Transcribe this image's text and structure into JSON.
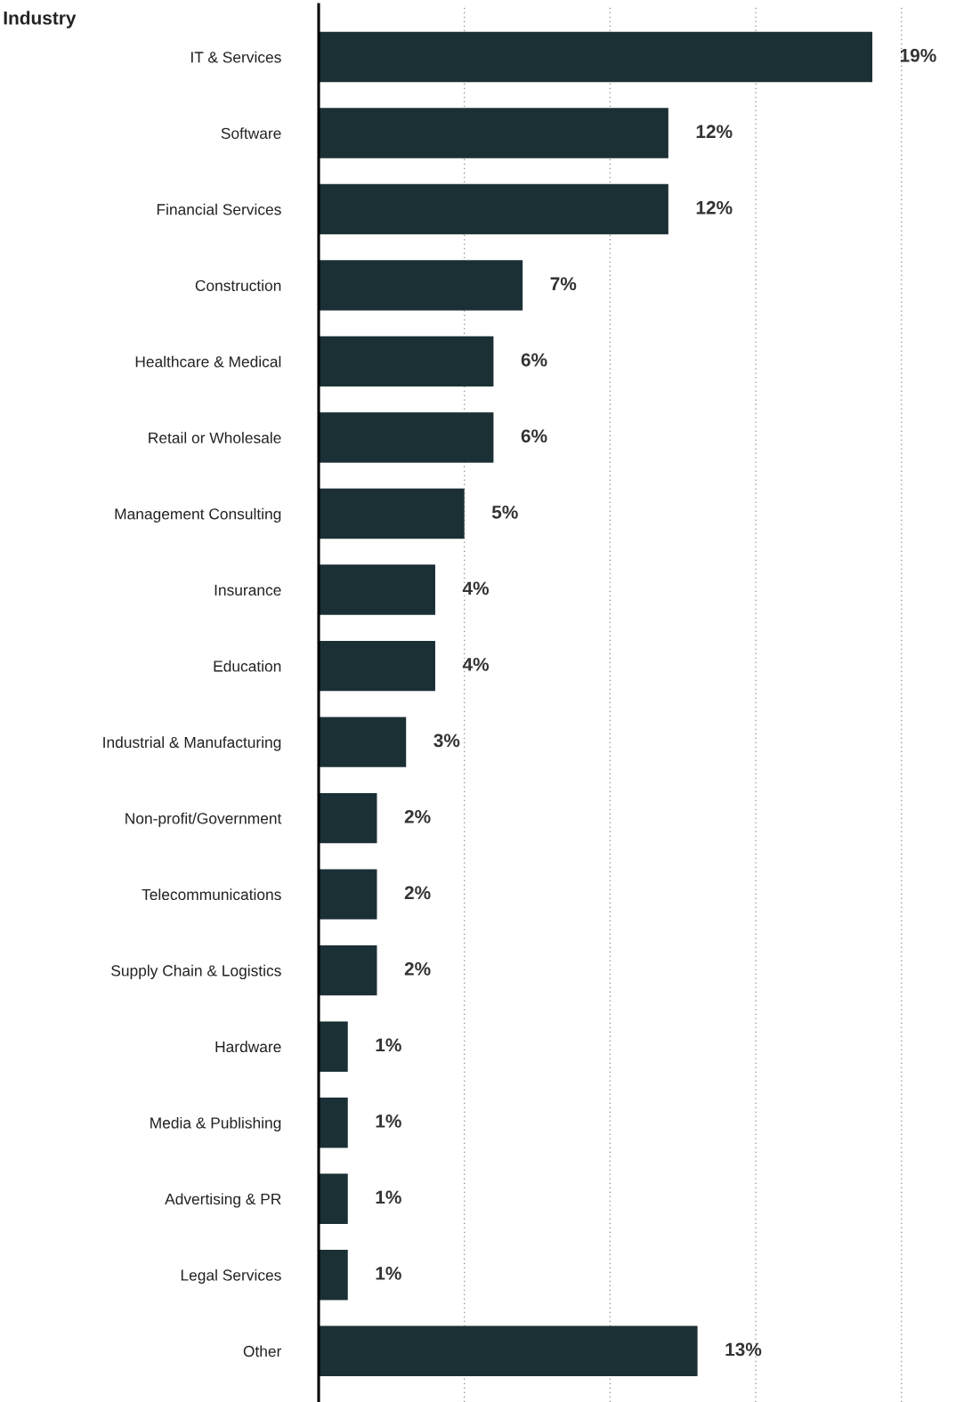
{
  "chart_data": {
    "type": "bar",
    "orientation": "horizontal",
    "title": "Industry",
    "categories": [
      "IT & Services",
      "Software",
      "Financial Services",
      "Construction",
      "Healthcare & Medical",
      "Retail or Wholesale",
      "Management Consulting",
      "Insurance",
      "Education",
      "Industrial & Manufacturing",
      "Non-profit/Government",
      "Telecommunications",
      "Supply Chain & Logistics",
      "Hardware",
      "Media & Publishing",
      "Advertising & PR",
      "Legal Services",
      "Other"
    ],
    "values": [
      19,
      12,
      12,
      7,
      6,
      6,
      5,
      4,
      4,
      3,
      2,
      2,
      2,
      1,
      1,
      1,
      1,
      13
    ],
    "value_labels": [
      "19%",
      "12%",
      "12%",
      "7%",
      "6%",
      "6%",
      "5%",
      "4%",
      "4%",
      "3%",
      "2%",
      "2%",
      "2%",
      "1%",
      "1%",
      "1%",
      "1%",
      "13%"
    ],
    "color": "#1b3035",
    "xticks": [
      {
        "value": 5,
        "label": null
      },
      {
        "value": 10,
        "label": null
      },
      {
        "value": 15,
        "label": null
      },
      {
        "value": 20,
        "label": null
      }
    ],
    "grid": "x",
    "tick_labels": "y"
  }
}
